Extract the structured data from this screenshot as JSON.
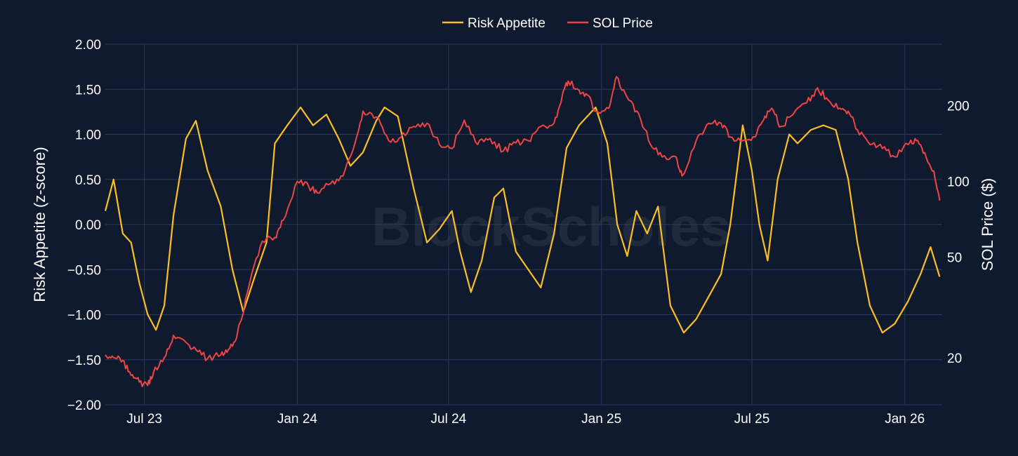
{
  "watermark": "BlockScholes",
  "colors": {
    "background": "#0f1a2e",
    "grid": "#2a3a5c",
    "risk": "#fbbf24",
    "sol": "#ef4444"
  },
  "chart_data": {
    "type": "line",
    "title": "",
    "legend_position": "top-center",
    "x_range": [
      "2023-05-15",
      "2026-02-15"
    ],
    "x_ticks": [
      {
        "date": "2023-07-01",
        "label": "Jul 23"
      },
      {
        "date": "2024-01-01",
        "label": "Jan 24"
      },
      {
        "date": "2024-07-01",
        "label": "Jul 24"
      },
      {
        "date": "2025-01-01",
        "label": "Jan 25"
      },
      {
        "date": "2025-07-01",
        "label": "Jul 25"
      },
      {
        "date": "2026-01-01",
        "label": "Jan 26"
      }
    ],
    "y_left": {
      "label": "Risk Appetite (z-score)",
      "range": [
        -2.0,
        2.0
      ],
      "ticks": [
        {
          "value": 2.0,
          "label": "2.00"
        },
        {
          "value": 1.5,
          "label": "1.50"
        },
        {
          "value": 1.0,
          "label": "1.00"
        },
        {
          "value": 0.5,
          "label": "0.50"
        },
        {
          "value": 0.0,
          "label": "0.00"
        },
        {
          "value": -0.5,
          "label": "−0.50"
        },
        {
          "value": -1.0,
          "label": "−1.00"
        },
        {
          "value": -1.5,
          "label": "−1.50"
        },
        {
          "value": -2.0,
          "label": "−2.00"
        }
      ]
    },
    "y_right": {
      "label": "SOL Price ($)",
      "scale": "log",
      "range": [
        13,
        350
      ],
      "ticks": [
        {
          "value": 200,
          "label": "200"
        },
        {
          "value": 100,
          "label": "100"
        },
        {
          "value": 50,
          "label": "50"
        },
        {
          "value": 20,
          "label": "20"
        }
      ]
    },
    "grid": true,
    "series": [
      {
        "name": "Risk Appetite",
        "axis": "left",
        "color": "#fbbf24",
        "points": [
          [
            "2023-05-15",
            0.15
          ],
          [
            "2023-05-25",
            0.5
          ],
          [
            "2023-06-05",
            -0.1
          ],
          [
            "2023-06-15",
            -0.2
          ],
          [
            "2023-06-25",
            -0.65
          ],
          [
            "2023-07-05",
            -1.0
          ],
          [
            "2023-07-15",
            -1.17
          ],
          [
            "2023-07-25",
            -0.9
          ],
          [
            "2023-08-05",
            0.1
          ],
          [
            "2023-08-20",
            0.95
          ],
          [
            "2023-09-01",
            1.15
          ],
          [
            "2023-09-15",
            0.6
          ],
          [
            "2023-10-01",
            0.2
          ],
          [
            "2023-10-15",
            -0.5
          ],
          [
            "2023-10-28",
            -0.97
          ],
          [
            "2023-11-10",
            -0.6
          ],
          [
            "2023-11-25",
            -0.2
          ],
          [
            "2023-12-05",
            0.9
          ],
          [
            "2023-12-20",
            1.1
          ],
          [
            "2024-01-05",
            1.3
          ],
          [
            "2024-01-20",
            1.1
          ],
          [
            "2024-02-05",
            1.22
          ],
          [
            "2024-02-20",
            0.95
          ],
          [
            "2024-03-05",
            0.65
          ],
          [
            "2024-03-20",
            0.8
          ],
          [
            "2024-04-05",
            1.15
          ],
          [
            "2024-04-15",
            1.3
          ],
          [
            "2024-05-01",
            1.2
          ],
          [
            "2024-05-20",
            0.4
          ],
          [
            "2024-06-05",
            -0.2
          ],
          [
            "2024-06-20",
            -0.05
          ],
          [
            "2024-07-05",
            0.15
          ],
          [
            "2024-07-15",
            -0.3
          ],
          [
            "2024-07-28",
            -0.75
          ],
          [
            "2024-08-10",
            -0.4
          ],
          [
            "2024-08-25",
            0.3
          ],
          [
            "2024-09-05",
            0.4
          ],
          [
            "2024-09-20",
            -0.3
          ],
          [
            "2024-10-05",
            -0.5
          ],
          [
            "2024-10-20",
            -0.7
          ],
          [
            "2024-11-05",
            -0.1
          ],
          [
            "2024-11-20",
            0.85
          ],
          [
            "2024-12-05",
            1.1
          ],
          [
            "2024-12-15",
            1.2
          ],
          [
            "2024-12-25",
            1.3
          ],
          [
            "2025-01-08",
            0.9
          ],
          [
            "2025-01-20",
            0.0
          ],
          [
            "2025-02-01",
            -0.35
          ],
          [
            "2025-02-12",
            0.15
          ],
          [
            "2025-02-25",
            -0.1
          ],
          [
            "2025-03-10",
            0.2
          ],
          [
            "2025-03-25",
            -0.9
          ],
          [
            "2025-04-10",
            -1.2
          ],
          [
            "2025-04-25",
            -1.05
          ],
          [
            "2025-05-10",
            -0.8
          ],
          [
            "2025-05-25",
            -0.55
          ],
          [
            "2025-06-05",
            0.0
          ],
          [
            "2025-06-20",
            1.1
          ],
          [
            "2025-07-01",
            0.6
          ],
          [
            "2025-07-10",
            0.0
          ],
          [
            "2025-07-20",
            -0.4
          ],
          [
            "2025-08-01",
            0.5
          ],
          [
            "2025-08-15",
            1.0
          ],
          [
            "2025-08-25",
            0.9
          ],
          [
            "2025-09-10",
            1.05
          ],
          [
            "2025-09-25",
            1.1
          ],
          [
            "2025-10-10",
            1.05
          ],
          [
            "2025-10-25",
            0.5
          ],
          [
            "2025-11-05",
            -0.2
          ],
          [
            "2025-11-20",
            -0.9
          ],
          [
            "2025-12-05",
            -1.2
          ],
          [
            "2025-12-20",
            -1.1
          ],
          [
            "2026-01-05",
            -0.85
          ],
          [
            "2026-01-20",
            -0.55
          ],
          [
            "2026-02-01",
            -0.25
          ],
          [
            "2026-02-12",
            -0.58
          ]
        ]
      },
      {
        "name": "SOL Price",
        "axis": "right",
        "color": "#ef4444",
        "points": [
          [
            "2023-05-15",
            20.5
          ],
          [
            "2023-05-25",
            20.0
          ],
          [
            "2023-06-05",
            19.5
          ],
          [
            "2023-06-15",
            17.0
          ],
          [
            "2023-06-25",
            16.0
          ],
          [
            "2023-07-05",
            15.5
          ],
          [
            "2023-07-12",
            17.5
          ],
          [
            "2023-07-25",
            20.0
          ],
          [
            "2023-08-05",
            24.5
          ],
          [
            "2023-08-20",
            23.0
          ],
          [
            "2023-09-01",
            21.5
          ],
          [
            "2023-09-15",
            19.8
          ],
          [
            "2023-10-01",
            20.5
          ],
          [
            "2023-10-10",
            21.5
          ],
          [
            "2023-10-20",
            24.0
          ],
          [
            "2023-11-05",
            40.0
          ],
          [
            "2023-11-20",
            58.0
          ],
          [
            "2023-12-05",
            60.0
          ],
          [
            "2023-12-15",
            70.0
          ],
          [
            "2024-01-01",
            100.0
          ],
          [
            "2024-01-15",
            95.0
          ],
          [
            "2024-01-25",
            90.0
          ],
          [
            "2024-02-10",
            98.0
          ],
          [
            "2024-02-25",
            105.0
          ],
          [
            "2024-03-10",
            140.0
          ],
          [
            "2024-03-20",
            190.0
          ],
          [
            "2024-04-05",
            180.0
          ],
          [
            "2024-04-20",
            145.0
          ],
          [
            "2024-05-05",
            150.0
          ],
          [
            "2024-05-20",
            165.0
          ],
          [
            "2024-06-05",
            170.0
          ],
          [
            "2024-06-20",
            140.0
          ],
          [
            "2024-07-05",
            135.0
          ],
          [
            "2024-07-20",
            175.0
          ],
          [
            "2024-08-05",
            140.0
          ],
          [
            "2024-08-20",
            148.0
          ],
          [
            "2024-09-05",
            132.0
          ],
          [
            "2024-09-20",
            142.0
          ],
          [
            "2024-10-05",
            145.0
          ],
          [
            "2024-10-20",
            165.0
          ],
          [
            "2024-11-05",
            170.0
          ],
          [
            "2024-11-15",
            220.0
          ],
          [
            "2024-11-22",
            250.0
          ],
          [
            "2024-12-05",
            230.0
          ],
          [
            "2024-12-15",
            220.0
          ],
          [
            "2024-12-25",
            190.0
          ],
          [
            "2025-01-10",
            195.0
          ],
          [
            "2025-01-19",
            260.0
          ],
          [
            "2025-02-01",
            215.0
          ],
          [
            "2025-02-15",
            185.0
          ],
          [
            "2025-03-01",
            140.0
          ],
          [
            "2025-03-15",
            125.0
          ],
          [
            "2025-04-01",
            125.0
          ],
          [
            "2025-04-08",
            105.0
          ],
          [
            "2025-04-25",
            145.0
          ],
          [
            "2025-05-10",
            170.0
          ],
          [
            "2025-05-25",
            170.0
          ],
          [
            "2025-06-05",
            150.0
          ],
          [
            "2025-06-20",
            145.0
          ],
          [
            "2025-07-05",
            150.0
          ],
          [
            "2025-07-15",
            175.0
          ],
          [
            "2025-07-25",
            195.0
          ],
          [
            "2025-08-05",
            165.0
          ],
          [
            "2025-08-20",
            185.0
          ],
          [
            "2025-09-05",
            205.0
          ],
          [
            "2025-09-18",
            235.0
          ],
          [
            "2025-10-01",
            210.0
          ],
          [
            "2025-10-15",
            195.0
          ],
          [
            "2025-10-25",
            190.0
          ],
          [
            "2025-11-05",
            160.0
          ],
          [
            "2025-11-20",
            140.0
          ],
          [
            "2025-12-05",
            135.0
          ],
          [
            "2025-12-20",
            125.0
          ],
          [
            "2026-01-05",
            140.0
          ],
          [
            "2026-01-15",
            145.0
          ],
          [
            "2026-01-25",
            130.0
          ],
          [
            "2026-02-05",
            110.0
          ],
          [
            "2026-02-12",
            84.0
          ]
        ]
      }
    ]
  }
}
